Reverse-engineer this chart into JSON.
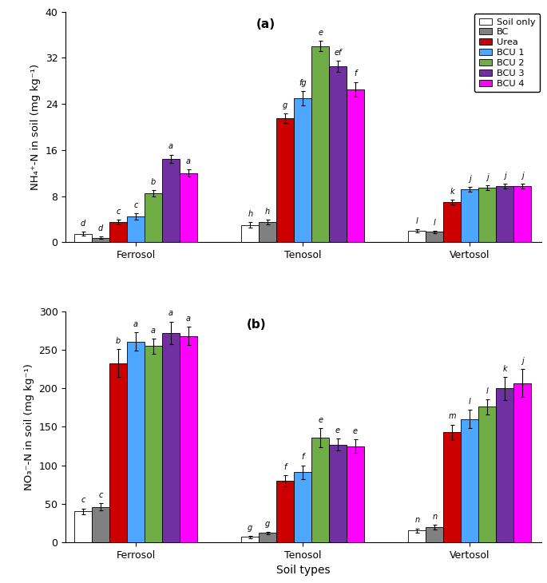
{
  "subplot_a": {
    "title": "(a)",
    "ylabel": "NH₄⁺-N in soil (mg kg⁻¹)",
    "ylim": [
      0,
      40
    ],
    "yticks": [
      0,
      8,
      16,
      24,
      32,
      40
    ],
    "soil_types": [
      "Ferrosol",
      "Tenosol",
      "Vertosol"
    ],
    "colors": [
      "#ffffff",
      "#808080",
      "#cc0000",
      "#4da6ff",
      "#70ad47",
      "#7030a0",
      "#ff00ff"
    ],
    "bar_edgecolor": "#000000",
    "values": [
      [
        1.5,
        0.8,
        3.5,
        4.5,
        8.5,
        14.5,
        12.0
      ],
      [
        3.0,
        3.5,
        21.5,
        25.0,
        34.0,
        30.5,
        26.5
      ],
      [
        2.0,
        1.8,
        7.0,
        9.2,
        9.5,
        9.8,
        9.8
      ]
    ],
    "errors": [
      [
        0.3,
        0.2,
        0.4,
        0.5,
        0.6,
        0.7,
        0.6
      ],
      [
        0.5,
        0.4,
        0.8,
        1.2,
        0.9,
        1.0,
        1.3
      ],
      [
        0.3,
        0.2,
        0.4,
        0.4,
        0.4,
        0.4,
        0.4
      ]
    ],
    "letters": [
      [
        "d",
        "d",
        "c",
        "c",
        "b",
        "a",
        "a"
      ],
      [
        "h",
        "h",
        "g",
        "fg",
        "e",
        "ef",
        "f"
      ],
      [
        "l",
        "l",
        "k",
        "j",
        "j",
        "j",
        "j"
      ]
    ]
  },
  "subplot_b": {
    "title": "(b)",
    "ylabel": "NO₃⁻-N in soil (mg kg⁻¹)",
    "xlabel": "Soil types",
    "ylim": [
      0,
      300
    ],
    "yticks": [
      0,
      50,
      100,
      150,
      200,
      250,
      300
    ],
    "soil_types": [
      "Ferrosol",
      "Tenosol",
      "Vertosol"
    ],
    "colors": [
      "#ffffff",
      "#808080",
      "#cc0000",
      "#4da6ff",
      "#70ad47",
      "#7030a0",
      "#ff00ff"
    ],
    "bar_edgecolor": "#000000",
    "values": [
      [
        40.0,
        46.0,
        233.0,
        261.0,
        255.0,
        272.0,
        268.0
      ],
      [
        7.0,
        12.0,
        80.0,
        91.0,
        136.0,
        127.0,
        125.0
      ],
      [
        15.0,
        20.0,
        143.0,
        160.0,
        176.0,
        200.0,
        207.0
      ]
    ],
    "errors": [
      [
        4.0,
        5.0,
        18.0,
        12.0,
        10.0,
        15.0,
        12.0
      ],
      [
        1.5,
        1.5,
        7.0,
        9.0,
        12.0,
        8.0,
        9.0
      ],
      [
        3.0,
        3.0,
        10.0,
        12.0,
        10.0,
        15.0,
        18.0
      ]
    ],
    "letters": [
      [
        "c",
        "c",
        "b",
        "a",
        "a",
        "a",
        "a"
      ],
      [
        "g",
        "g",
        "f",
        "f",
        "e",
        "e",
        "e"
      ],
      [
        "n",
        "n",
        "m",
        "l",
        "l",
        "k",
        "j"
      ]
    ]
  },
  "legend_labels": [
    "Soil only",
    "BC",
    "Urea",
    "BCU 1",
    "BCU 2",
    "BCU 3",
    "BCU 4"
  ],
  "legend_colors": [
    "#ffffff",
    "#808080",
    "#cc0000",
    "#4da6ff",
    "#70ad47",
    "#7030a0",
    "#ff00ff"
  ]
}
